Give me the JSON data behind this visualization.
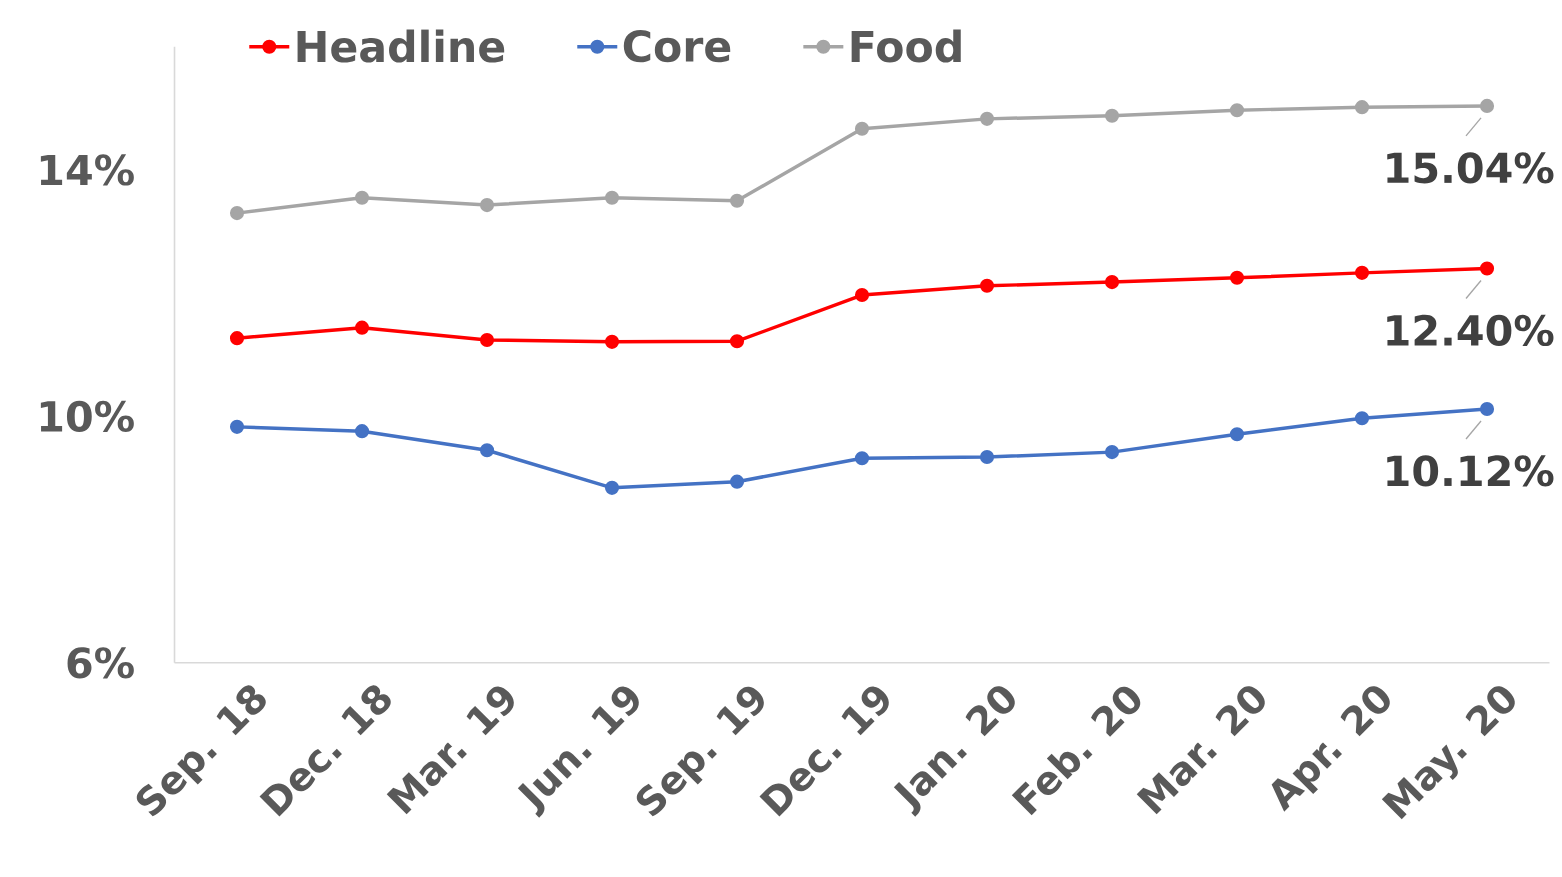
{
  "chart_data": {
    "type": "line",
    "categories": [
      "Sep. 18",
      "Dec. 18",
      "Mar. 19",
      "Jun. 19",
      "Sep. 19",
      "Dec. 19",
      "Jan. 20",
      "Feb. 20",
      "Mar. 20",
      "Apr. 20",
      "May. 20"
    ],
    "series": [
      {
        "name": "Headline",
        "color": "#ff0000",
        "values": [
          11.27,
          11.44,
          11.24,
          11.21,
          11.22,
          11.97,
          12.12,
          12.18,
          12.25,
          12.33,
          12.4
        ],
        "value_labels": [
          null,
          null,
          null,
          null,
          null,
          null,
          null,
          null,
          null,
          null,
          "12.40%"
        ]
      },
      {
        "name": "Core",
        "color": "#4472c4",
        "values": [
          9.83,
          9.76,
          9.45,
          8.84,
          8.94,
          9.32,
          9.34,
          9.42,
          9.71,
          9.97,
          10.12
        ],
        "value_labels": [
          null,
          null,
          null,
          null,
          null,
          null,
          null,
          null,
          null,
          null,
          "10.12%"
        ]
      },
      {
        "name": "Food",
        "color": "#a5a5a5",
        "values": [
          13.3,
          13.55,
          13.43,
          13.55,
          13.5,
          14.67,
          14.83,
          14.88,
          14.97,
          15.02,
          15.04
        ],
        "value_labels": [
          null,
          null,
          null,
          null,
          null,
          null,
          null,
          null,
          null,
          null,
          "15.04%"
        ]
      }
    ],
    "ylim": [
      6,
      16
    ],
    "yticks": [
      {
        "value": 6,
        "label": "6%"
      },
      {
        "value": 10,
        "label": "10%"
      },
      {
        "value": 14,
        "label": "14%"
      }
    ],
    "grid": false,
    "legend": "top left",
    "marker": "circle",
    "line_style": "solid"
  }
}
